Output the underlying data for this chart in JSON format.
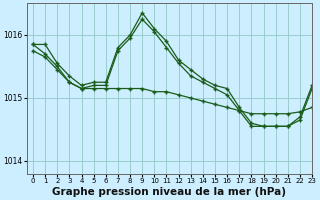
{
  "title": "Graphe pression niveau de la mer (hPa)",
  "bg_color": "#cceeff",
  "grid_color": "#99cccc",
  "line_color": "#1a5c1a",
  "marker": "+",
  "xlim": [
    -0.5,
    23
  ],
  "ylim": [
    1013.8,
    1016.5
  ],
  "yticks": [
    1014,
    1015,
    1016
  ],
  "xticks": [
    0,
    1,
    2,
    3,
    4,
    5,
    6,
    7,
    8,
    9,
    10,
    11,
    12,
    13,
    14,
    15,
    16,
    17,
    18,
    19,
    20,
    21,
    22,
    23
  ],
  "line1_x": [
    0,
    1,
    2,
    3,
    4,
    5,
    6,
    7,
    8,
    9,
    10,
    11,
    12,
    13,
    14,
    15,
    16,
    17,
    18,
    19,
    20,
    21,
    22,
    23
  ],
  "line1_y": [
    1015.85,
    1015.85,
    1015.55,
    1015.35,
    1015.2,
    1015.25,
    1015.25,
    1015.8,
    1016.0,
    1016.35,
    1016.1,
    1015.9,
    1015.6,
    1015.45,
    1015.3,
    1015.2,
    1015.15,
    1014.85,
    1014.6,
    1014.55,
    1014.55,
    1014.55,
    1014.7,
    1015.2
  ],
  "line2_x": [
    0,
    1,
    2,
    3,
    4,
    5,
    6,
    7,
    8,
    9,
    10,
    11,
    12,
    13,
    14,
    15,
    16,
    17,
    18,
    19,
    20,
    21,
    22,
    23
  ],
  "line2_y": [
    1015.85,
    1015.7,
    1015.5,
    1015.25,
    1015.15,
    1015.2,
    1015.2,
    1015.75,
    1015.95,
    1016.25,
    1016.05,
    1015.8,
    1015.55,
    1015.35,
    1015.25,
    1015.15,
    1015.05,
    1014.8,
    1014.55,
    1014.55,
    1014.55,
    1014.55,
    1014.65,
    1015.15
  ],
  "line3_x": [
    0,
    1,
    2,
    3,
    4,
    5,
    6,
    7,
    8,
    9,
    10,
    11,
    12,
    13,
    14,
    15,
    16,
    17,
    18,
    19,
    20,
    21,
    22,
    23
  ],
  "line3_y": [
    1015.75,
    1015.65,
    1015.45,
    1015.25,
    1015.15,
    1015.15,
    1015.15,
    1015.15,
    1015.15,
    1015.15,
    1015.1,
    1015.1,
    1015.05,
    1015.0,
    1014.95,
    1014.9,
    1014.85,
    1014.8,
    1014.75,
    1014.75,
    1014.75,
    1014.75,
    1014.78,
    1014.85
  ],
  "xlabel_fontsize": 7.5,
  "ylabel_fontsize": 7,
  "title_fontsize": 8
}
